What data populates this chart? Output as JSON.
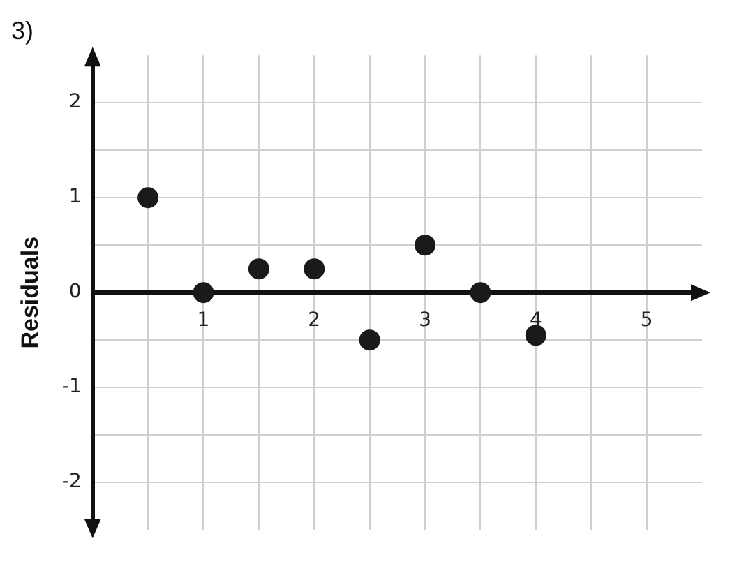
{
  "chart_data": {
    "type": "scatter",
    "title": "3)",
    "ylabel": "Residuals",
    "x": [
      0.5,
      1,
      1.5,
      2,
      2.5,
      3,
      3.5,
      4
    ],
    "series": [
      {
        "color": "#1a1a1a",
        "values": [
          1,
          0,
          0.25,
          0.25,
          -0.5,
          0.5,
          0,
          -0.45
        ]
      }
    ],
    "xlim": [
      0,
      5.5
    ],
    "ylim": [
      -2.5,
      2.5
    ],
    "xticks": [
      {
        "value": 0.5,
        "label": null
      },
      1,
      {
        "value": 1.5,
        "label": null
      },
      2,
      {
        "value": 2.5,
        "label": null
      },
      3,
      {
        "value": 3.5,
        "label": null
      },
      4,
      {
        "value": 4.5,
        "label": null
      },
      5
    ],
    "yticks": [
      -2,
      {
        "value": -1.5,
        "label": null
      },
      -1,
      {
        "value": -0.5,
        "label": null
      },
      0,
      {
        "value": 0.5,
        "label": null
      },
      1,
      {
        "value": 1.5,
        "label": null
      },
      2
    ],
    "grid": true,
    "marker": "circle",
    "legend": false
  }
}
